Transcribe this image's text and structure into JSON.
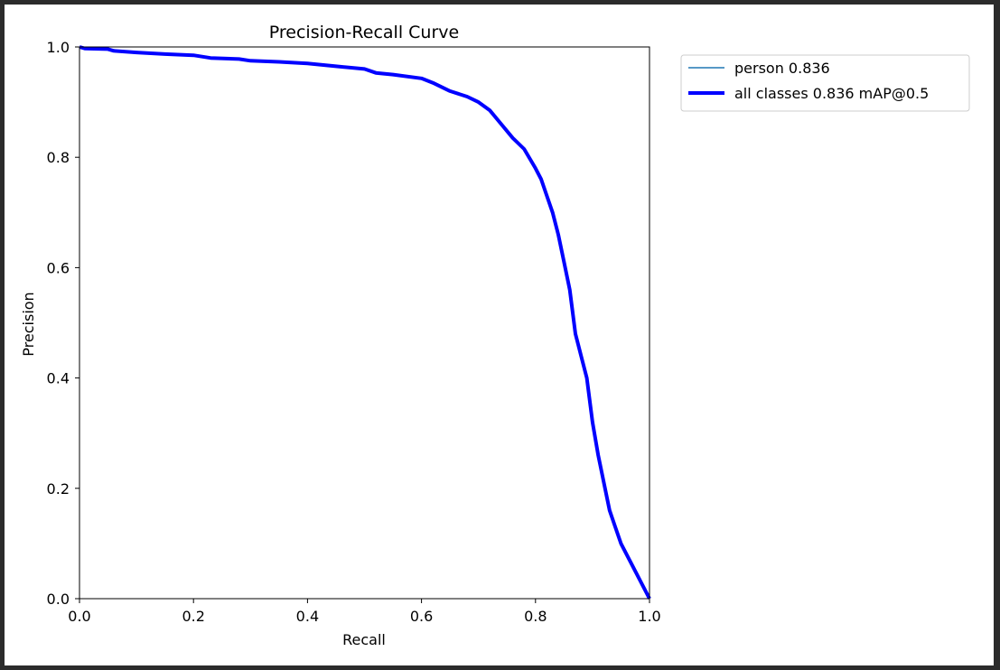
{
  "colors": {
    "background": "#ffffff",
    "frame": "#2b2b2b",
    "person_series": "#1f77b4",
    "all_classes_series": "#0000ff"
  },
  "chart_data": {
    "type": "line",
    "title": "Precision-Recall Curve",
    "xlabel": "Recall",
    "ylabel": "Precision",
    "xlim": [
      0.0,
      1.0
    ],
    "ylim": [
      0.0,
      1.0
    ],
    "xticks": [
      "0.0",
      "0.2",
      "0.4",
      "0.6",
      "0.8",
      "1.0"
    ],
    "yticks": [
      "0.0",
      "0.2",
      "0.4",
      "0.6",
      "0.8",
      "1.0"
    ],
    "grid": false,
    "legend_position": "outside-top-right",
    "series": [
      {
        "name": "person 0.836",
        "color": "#1f77b4",
        "linewidth": "thin",
        "x": [
          0.0,
          0.01,
          0.05,
          0.06,
          0.1,
          0.15,
          0.2,
          0.23,
          0.28,
          0.3,
          0.35,
          0.4,
          0.45,
          0.5,
          0.52,
          0.55,
          0.6,
          0.62,
          0.65,
          0.68,
          0.7,
          0.72,
          0.74,
          0.76,
          0.78,
          0.8,
          0.81,
          0.82,
          0.83,
          0.84,
          0.85,
          0.86,
          0.87,
          0.88,
          0.89,
          0.9,
          0.91,
          0.92,
          0.93,
          0.94,
          0.95,
          1.0
        ],
        "y": [
          1.0,
          0.997,
          0.996,
          0.993,
          0.99,
          0.987,
          0.985,
          0.98,
          0.978,
          0.975,
          0.973,
          0.97,
          0.965,
          0.96,
          0.953,
          0.95,
          0.943,
          0.935,
          0.92,
          0.91,
          0.9,
          0.885,
          0.86,
          0.835,
          0.815,
          0.78,
          0.76,
          0.73,
          0.7,
          0.66,
          0.61,
          0.56,
          0.48,
          0.44,
          0.4,
          0.32,
          0.26,
          0.21,
          0.16,
          0.13,
          0.1,
          0.0
        ]
      },
      {
        "name": "all classes 0.836 mAP@0.5",
        "color": "#0000ff",
        "linewidth": "thick",
        "x": [
          0.0,
          0.01,
          0.05,
          0.06,
          0.1,
          0.15,
          0.2,
          0.23,
          0.28,
          0.3,
          0.35,
          0.4,
          0.45,
          0.5,
          0.52,
          0.55,
          0.6,
          0.62,
          0.65,
          0.68,
          0.7,
          0.72,
          0.74,
          0.76,
          0.78,
          0.8,
          0.81,
          0.82,
          0.83,
          0.84,
          0.85,
          0.86,
          0.87,
          0.88,
          0.89,
          0.9,
          0.91,
          0.92,
          0.93,
          0.94,
          0.95,
          1.0
        ],
        "y": [
          1.0,
          0.997,
          0.996,
          0.993,
          0.99,
          0.987,
          0.985,
          0.98,
          0.978,
          0.975,
          0.973,
          0.97,
          0.965,
          0.96,
          0.953,
          0.95,
          0.943,
          0.935,
          0.92,
          0.91,
          0.9,
          0.885,
          0.86,
          0.835,
          0.815,
          0.78,
          0.76,
          0.73,
          0.7,
          0.66,
          0.61,
          0.56,
          0.48,
          0.44,
          0.4,
          0.32,
          0.26,
          0.21,
          0.16,
          0.13,
          0.1,
          0.0
        ]
      }
    ]
  }
}
